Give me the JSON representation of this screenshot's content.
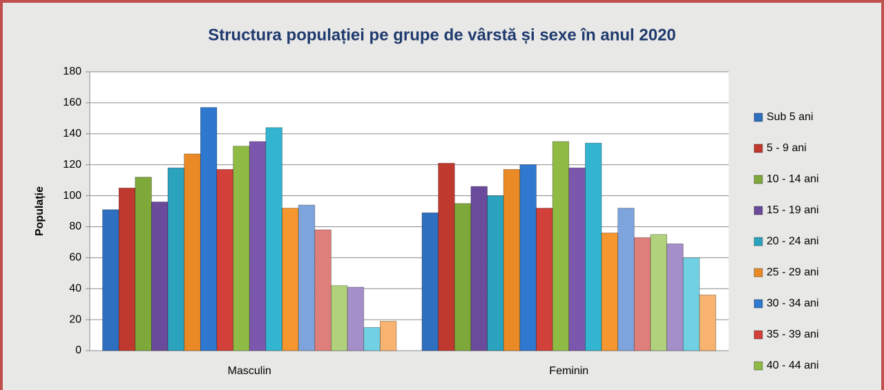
{
  "chart_data": {
    "type": "bar",
    "title": "Structura populației pe grupe de vârstă și sexe în anul 2020",
    "y_label": "Populație",
    "categories": [
      "Masculin",
      "Feminin"
    ],
    "ylim": [
      0,
      180
    ],
    "yticks": [
      0,
      20,
      40,
      60,
      80,
      100,
      120,
      140,
      160,
      180
    ],
    "grid": true,
    "legend": "right",
    "series": [
      {
        "name": "Sub 5 ani",
        "color": "#2f6fbf",
        "values": [
          91,
          89
        ]
      },
      {
        "name": "5 - 9 ani",
        "color": "#c0392f",
        "values": [
          105,
          121
        ]
      },
      {
        "name": "10 - 14 ani",
        "color": "#7fa83a",
        "values": [
          112,
          95
        ]
      },
      {
        "name": "15 - 19 ani",
        "color": "#6a4a9a",
        "values": [
          96,
          106
        ]
      },
      {
        "name": "20 - 24 ani",
        "color": "#2ba3bf",
        "values": [
          118,
          100
        ]
      },
      {
        "name": "25 - 29 ani",
        "color": "#ea8a26",
        "values": [
          127,
          117
        ]
      },
      {
        "name": "30 - 34 ani",
        "color": "#2e78d0",
        "values": [
          157,
          120
        ]
      },
      {
        "name": "35 - 39 ani",
        "color": "#d2403a",
        "values": [
          117,
          92
        ]
      },
      {
        "name": "40 - 44 ani",
        "color": "#8fbb44",
        "values": [
          132,
          135
        ]
      },
      {
        "color": "#7b58ae",
        "values": [
          135,
          118
        ]
      },
      {
        "color": "#33b5d1",
        "values": [
          144,
          134
        ]
      },
      {
        "color": "#f5962e",
        "values": [
          92,
          76
        ]
      },
      {
        "color": "#7ea4de",
        "values": [
          94,
          92
        ]
      },
      {
        "color": "#df7f7c",
        "values": [
          78,
          73
        ]
      },
      {
        "color": "#b1d17d",
        "values": [
          42,
          75
        ]
      },
      {
        "color": "#a58fc9",
        "values": [
          41,
          69
        ]
      },
      {
        "color": "#72d0e3",
        "values": [
          15,
          60
        ]
      },
      {
        "color": "#f7b36f",
        "values": [
          19,
          36
        ]
      }
    ]
  }
}
